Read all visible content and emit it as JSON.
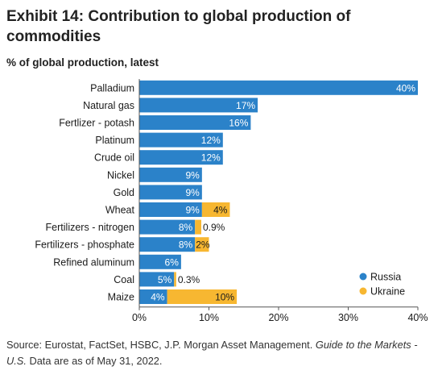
{
  "title": "Exhibit 14: Contribution to global production of commodities",
  "subtitle": "% of global production, latest",
  "source": {
    "prefix": "Source: Eurostat, FactSet, HSBC, J.P. Morgan Asset Management. ",
    "italic": "Guide to the Markets - U.S.",
    "suffix": " Data are as of May 31, 2022."
  },
  "colors": {
    "russia": "#2b82c9",
    "ukraine": "#f7b731",
    "axis": "#555555"
  },
  "chart_data": {
    "type": "bar",
    "orientation": "horizontal",
    "stacked": true,
    "categories": [
      "Palladium",
      "Natural gas",
      "Fertlizer - potash",
      "Platinum",
      "Crude oil",
      "Nickel",
      "Gold",
      "Wheat",
      "Fertilizers - nitrogen",
      "Fertilizers - phosphate",
      "Refined aluminum",
      "Coal",
      "Maize"
    ],
    "series": [
      {
        "name": "Russia",
        "values": [
          40,
          17,
          16,
          12,
          12,
          9,
          9,
          9,
          8,
          8,
          6,
          5,
          4
        ],
        "labels": [
          "40%",
          "17%",
          "16%",
          "12%",
          "12%",
          "9%",
          "9%",
          "9%",
          "8%",
          "8%",
          "6%",
          "5%",
          "4%"
        ]
      },
      {
        "name": "Ukraine",
        "values": [
          null,
          null,
          null,
          null,
          null,
          null,
          null,
          4,
          0.9,
          2,
          null,
          0.3,
          10
        ],
        "labels": [
          "",
          "",
          "",
          "",
          "",
          "",
          "",
          "4%",
          "0.9%",
          "2%",
          "",
          "0.3%",
          "10%"
        ]
      }
    ],
    "xlim": [
      0,
      40
    ],
    "xticks": [
      0,
      10,
      20,
      30,
      40
    ],
    "xtick_labels": [
      "0%",
      "10%",
      "20%",
      "30%",
      "40%"
    ],
    "legend": [
      "Russia",
      "Ukraine"
    ],
    "legend_position": "bottom-right",
    "grid": false
  }
}
